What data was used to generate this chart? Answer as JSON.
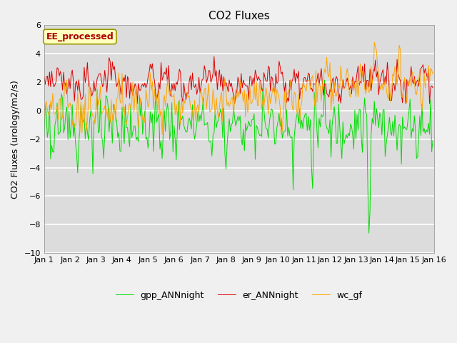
{
  "title": "CO2 Fluxes",
  "ylabel": "CO2 Fluxes (urology/m2/s)",
  "xlabel": "",
  "ylim": [
    -10,
    6
  ],
  "xlim": [
    0,
    360
  ],
  "n_points": 360,
  "xtick_positions": [
    0,
    24,
    48,
    72,
    96,
    120,
    144,
    168,
    192,
    216,
    240,
    264,
    288,
    312,
    336,
    360
  ],
  "xtick_labels": [
    "Jan 1",
    "Jan 2",
    "Jan 3",
    "Jan 4",
    "Jan 5",
    "Jan 6",
    "Jan 7",
    "Jan 8",
    "Jan 9",
    "Jan 10",
    "Jan 11",
    "Jan 12",
    "Jan 13",
    "Jan 14",
    "Jan 15",
    "Jan 16"
  ],
  "annotation_text": "EE_processed",
  "annotation_color": "#AA0000",
  "annotation_bg": "#FFFFC0",
  "annotation_border": "#999900",
  "legend_labels": [
    "gpp_ANNnight",
    "er_ANNnight",
    "wc_gf"
  ],
  "line_colors": [
    "#00DD00",
    "#DD0000",
    "#FFA500"
  ],
  "line_width": 0.7,
  "axes_bg": "#DCDCDC",
  "fig_bg": "#F0F0F0",
  "grid_color": "#FFFFFF",
  "title_fontsize": 11,
  "label_fontsize": 9,
  "tick_fontsize": 8
}
